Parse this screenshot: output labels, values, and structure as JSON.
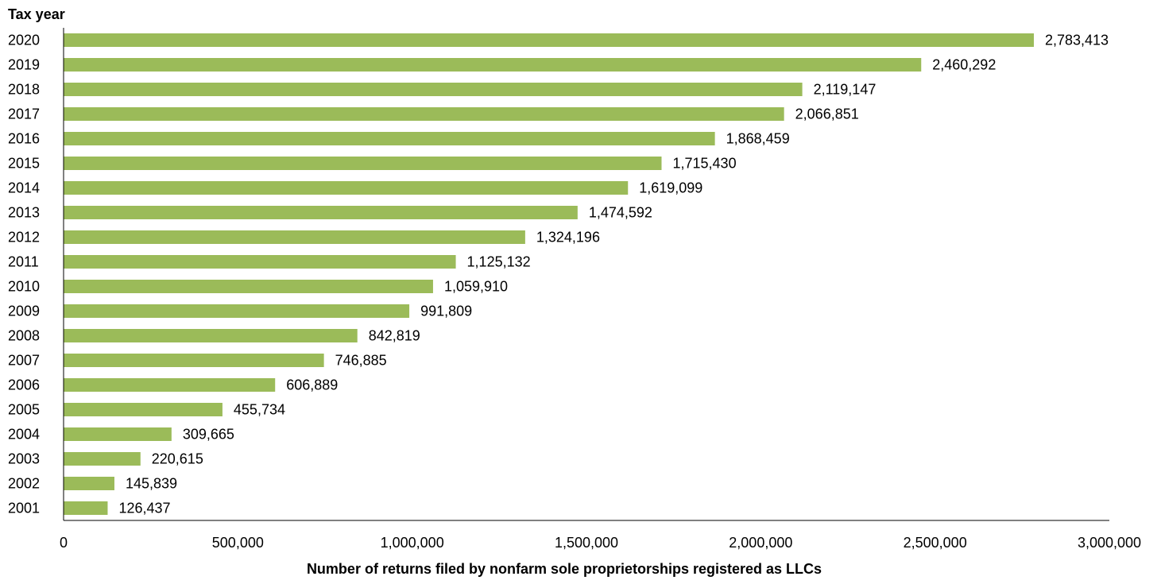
{
  "chart_data": {
    "type": "bar",
    "orientation": "horizontal",
    "title": "",
    "ylabel": "Tax year",
    "xlabel": "Number of returns filed by nonfarm sole proprietorships registered as LLCs",
    "xlim": [
      0,
      3000000
    ],
    "xticks": [
      0,
      500000,
      1000000,
      1500000,
      2000000,
      2500000,
      3000000
    ],
    "xtick_labels": [
      "0",
      "500,000",
      "1,000,000",
      "1,500,000",
      "2,000,000",
      "2,500,000",
      "3,000,000"
    ],
    "categories": [
      "2020",
      "2019",
      "2018",
      "2017",
      "2016",
      "2015",
      "2014",
      "2013",
      "2012",
      "2011",
      "2010",
      "2009",
      "2008",
      "2007",
      "2006",
      "2005",
      "2004",
      "2003",
      "2002",
      "2001"
    ],
    "values": [
      2783413,
      2460292,
      2119147,
      2066851,
      1868459,
      1715430,
      1619099,
      1474592,
      1324196,
      1125132,
      1059910,
      991809,
      842819,
      746885,
      606889,
      455734,
      309665,
      220615,
      145839,
      126437
    ],
    "value_labels": [
      "2,783,413",
      "2,460,292",
      "2,119,147",
      "2,066,851",
      "1,868,459",
      "1,715,430",
      "1,619,099",
      "1,474,592",
      "1,324,196",
      "1,125,132",
      "1,059,910",
      "991,809",
      "842,819",
      "746,885",
      "606,889",
      "455,734",
      "309,665",
      "220,615",
      "145,839",
      "126,437"
    ],
    "bar_color": "#9bbb59",
    "grid": false,
    "legend": false
  }
}
